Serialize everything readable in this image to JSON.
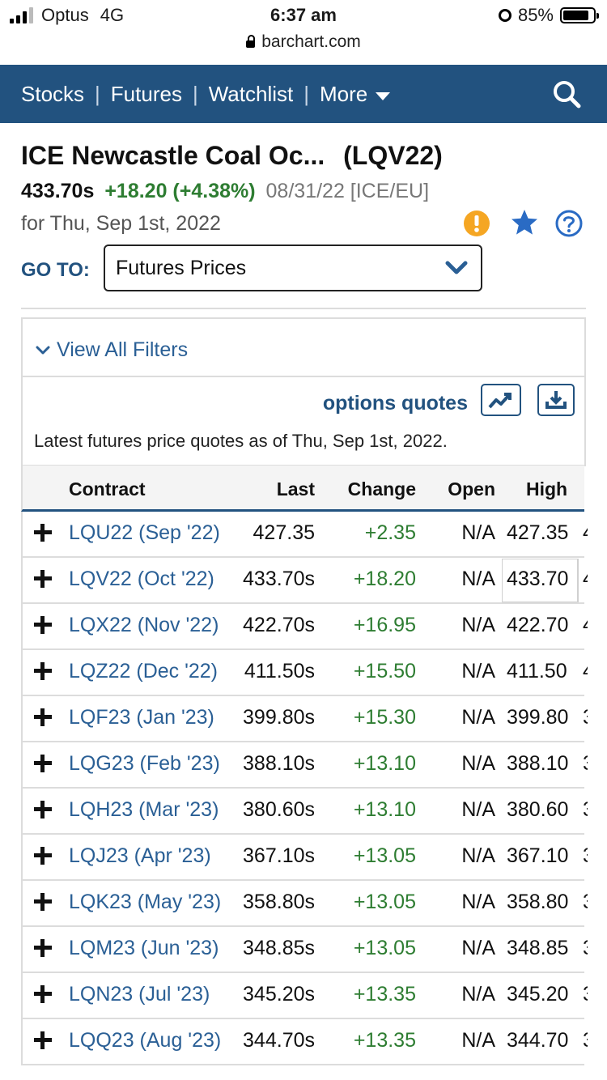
{
  "status_bar": {
    "carrier": "Optus",
    "network": "4G",
    "time": "6:37 am",
    "url": "barchart.com",
    "battery": "85%"
  },
  "nav": {
    "items": [
      "Stocks",
      "Futures",
      "Watchlist",
      "More"
    ],
    "separator": "|"
  },
  "header": {
    "title": "ICE Newcastle Coal Oc...",
    "symbol": "(LQV22)",
    "last_price": "433.70s",
    "change": "+18.20 (+4.38%)",
    "price_date": "08/31/22 [ICE/EU]",
    "for_date": "for Thu, Sep 1st, 2022"
  },
  "goto": {
    "label": "GO TO:",
    "value": "Futures Prices"
  },
  "filters": {
    "link": "View All Filters"
  },
  "panel": {
    "options_quotes": "options quotes",
    "latest_text": "Latest futures price quotes as of Thu, Sep 1st, 2022."
  },
  "table": {
    "headers": [
      "Contract",
      "Last",
      "Change",
      "Open",
      "High"
    ],
    "rows": [
      {
        "contract": "LQU22 (Sep '22)",
        "last": "427.35",
        "change": "+2.35",
        "open": "N/A",
        "high": "427.35"
      },
      {
        "contract": "LQV22 (Oct '22)",
        "last": "433.70s",
        "change": "+18.20",
        "open": "N/A",
        "high": "433.70"
      },
      {
        "contract": "LQX22 (Nov '22)",
        "last": "422.70s",
        "change": "+16.95",
        "open": "N/A",
        "high": "422.70"
      },
      {
        "contract": "LQZ22 (Dec '22)",
        "last": "411.50s",
        "change": "+15.50",
        "open": "N/A",
        "high": "411.50"
      },
      {
        "contract": "LQF23 (Jan '23)",
        "last": "399.80s",
        "change": "+15.30",
        "open": "N/A",
        "high": "399.80"
      },
      {
        "contract": "LQG23 (Feb '23)",
        "last": "388.10s",
        "change": "+13.10",
        "open": "N/A",
        "high": "388.10"
      },
      {
        "contract": "LQH23 (Mar '23)",
        "last": "380.60s",
        "change": "+13.10",
        "open": "N/A",
        "high": "380.60"
      },
      {
        "contract": "LQJ23 (Apr '23)",
        "last": "367.10s",
        "change": "+13.05",
        "open": "N/A",
        "high": "367.10"
      },
      {
        "contract": "LQK23 (May '23)",
        "last": "358.80s",
        "change": "+13.05",
        "open": "N/A",
        "high": "358.80"
      },
      {
        "contract": "LQM23 (Jun '23)",
        "last": "348.85s",
        "change": "+13.05",
        "open": "N/A",
        "high": "348.85"
      },
      {
        "contract": "LQN23 (Jul '23)",
        "last": "345.20s",
        "change": "+13.35",
        "open": "N/A",
        "high": "345.20"
      },
      {
        "contract": "LQQ23 (Aug '23)",
        "last": "344.70s",
        "change": "+13.35",
        "open": "N/A",
        "high": "344.70"
      }
    ]
  },
  "colors": {
    "brand_blue": "#22527f",
    "link_blue": "#2a5f95",
    "positive_green": "#2e7d32",
    "warning_orange": "#f5a623"
  }
}
